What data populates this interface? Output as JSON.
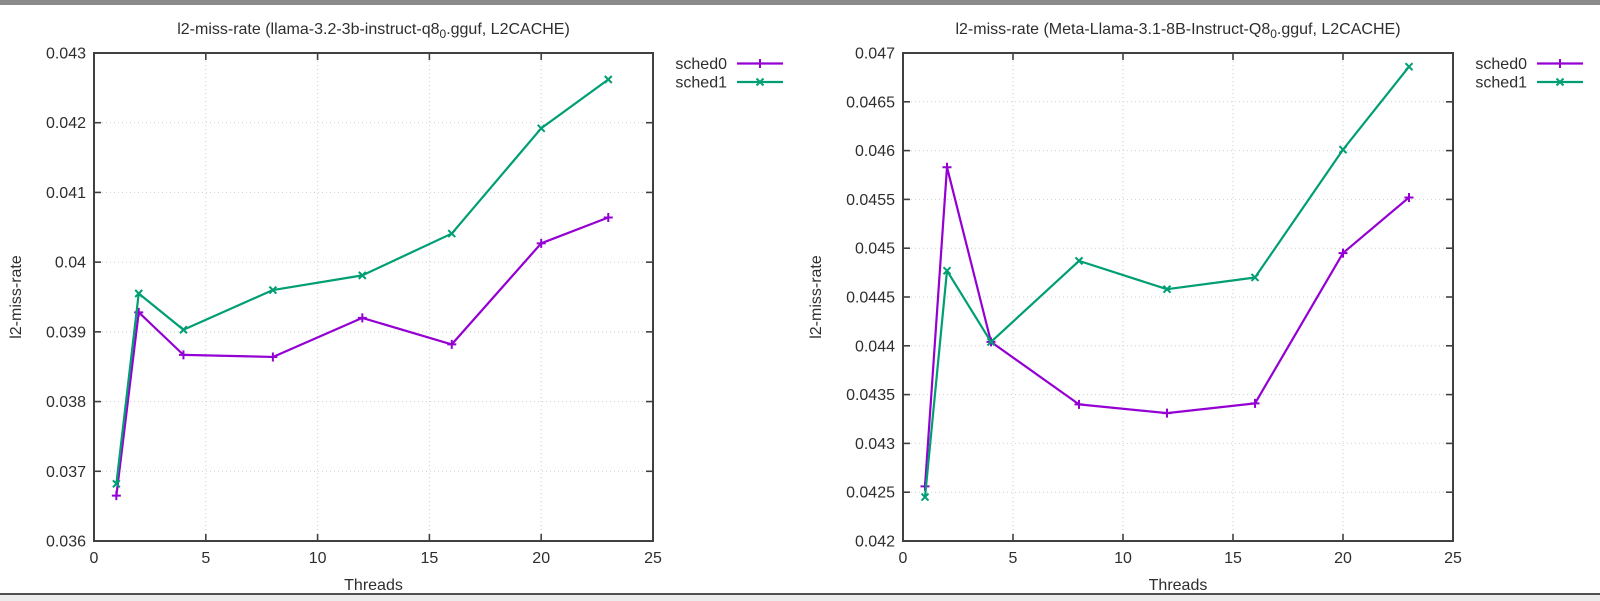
{
  "page": {
    "background": "#ffffff",
    "top_bar_color": "#8b8b8b",
    "bottom_line_color": "#505050",
    "bottom_strip_color": "#ececec",
    "text_color": "#2e2e2e",
    "axis_color": "#404040",
    "grid_color": "#cfcfcf"
  },
  "chart_data": [
    {
      "type": "line",
      "title": {
        "pre": "l2-miss-rate (llama-3.2-3b-instruct-q8",
        "sub": "0",
        "post": ".gguf, L2CACHE)"
      },
      "title_plain": "l2-miss-rate (llama-3.2-3b-instruct-q8_0.gguf, L2CACHE)",
      "xlabel": "Threads",
      "ylabel": "l2-miss-rate",
      "xlim": [
        0,
        25
      ],
      "ylim": [
        0.036,
        0.043
      ],
      "grid": true,
      "legend_position": "outside-top-right",
      "x_ticks": {
        "values": [
          0,
          5,
          10,
          15,
          20,
          25
        ],
        "labels": [
          "0",
          "5",
          "10",
          "15",
          "20",
          "25"
        ]
      },
      "y_ticks": {
        "values": [
          0.036,
          0.037,
          0.038,
          0.039,
          0.04,
          0.041,
          0.042,
          0.043
        ],
        "labels": [
          "0.036",
          "0.037",
          "0.038",
          "0.039",
          "0.04",
          "0.041",
          "0.042",
          "0.043"
        ]
      },
      "x": [
        1,
        2,
        4,
        8,
        12,
        16,
        20,
        23
      ],
      "series": [
        {
          "name": "sched0",
          "color": "#9400d3",
          "marker": "plus",
          "values": [
            0.03665,
            0.03928,
            0.03867,
            0.03864,
            0.0392,
            0.03882,
            0.04027,
            0.04064
          ]
        },
        {
          "name": "sched1",
          "color": "#009e73",
          "marker": "cross",
          "values": [
            0.03682,
            0.03955,
            0.03903,
            0.0396,
            0.03981,
            0.04041,
            0.04192,
            0.04262
          ]
        }
      ]
    },
    {
      "type": "line",
      "title": {
        "pre": "l2-miss-rate (Meta-Llama-3.1-8B-Instruct-Q8",
        "sub": "0",
        "post": ".gguf, L2CACHE)"
      },
      "title_plain": "l2-miss-rate (Meta-Llama-3.1-8B-Instruct-Q8_0.gguf, L2CACHE)",
      "xlabel": "Threads",
      "ylabel": "l2-miss-rate",
      "xlim": [
        0,
        25
      ],
      "ylim": [
        0.042,
        0.047
      ],
      "grid": true,
      "legend_position": "outside-top-right",
      "x_ticks": {
        "values": [
          0,
          5,
          10,
          15,
          20,
          25
        ],
        "labels": [
          "0",
          "5",
          "10",
          "15",
          "20",
          "25"
        ]
      },
      "y_ticks": {
        "values": [
          0.042,
          0.0425,
          0.043,
          0.0435,
          0.044,
          0.0445,
          0.045,
          0.0455,
          0.046,
          0.0465,
          0.047
        ],
        "labels": [
          "0.042",
          "0.0425",
          "0.043",
          "0.0435",
          "0.044",
          "0.0445",
          "0.045",
          "0.0455",
          "0.046",
          "0.0465",
          "0.047"
        ]
      },
      "x": [
        1,
        2,
        4,
        8,
        12,
        16,
        20,
        23
      ],
      "series": [
        {
          "name": "sched0",
          "color": "#9400d3",
          "marker": "plus",
          "values": [
            0.04256,
            0.04583,
            0.04404,
            0.0434,
            0.04331,
            0.04341,
            0.04495,
            0.04552
          ]
        },
        {
          "name": "sched1",
          "color": "#009e73",
          "marker": "cross",
          "values": [
            0.04245,
            0.04477,
            0.04404,
            0.04487,
            0.04458,
            0.0447,
            0.04601,
            0.04686
          ]
        }
      ]
    }
  ]
}
